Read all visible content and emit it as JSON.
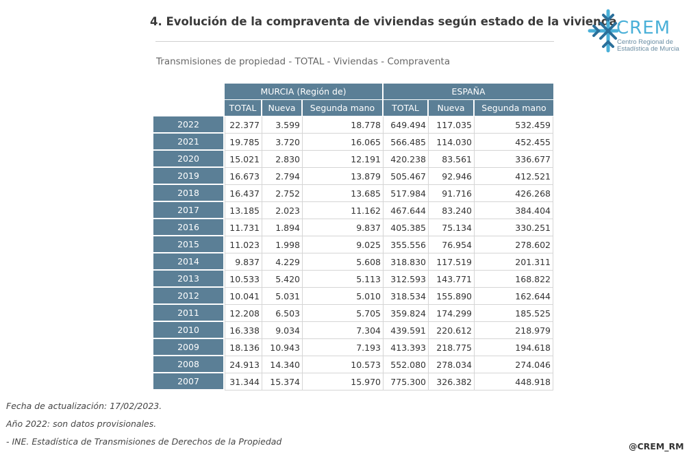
{
  "title": "4. Evolución de la compraventa de viviendas según estado de la vivienda.",
  "subtitle": "Transmisiones de propiedad - TOTAL - Viviendas - Compraventa",
  "logo": {
    "text": "CREM",
    "line1": "Centro Regional de",
    "line2": "Estadística de Murcia",
    "color": "#4ab0d8"
  },
  "table": {
    "groups": [
      "MURCIA (Región de)",
      "ESPAÑA"
    ],
    "columns": [
      "TOTAL",
      "Nueva",
      "Segunda mano",
      "TOTAL",
      "Nueva",
      "Segunda mano"
    ],
    "rows": [
      {
        "year": "2022",
        "values": [
          "22.377",
          "3.599",
          "18.778",
          "649.494",
          "117.035",
          "532.459"
        ]
      },
      {
        "year": "2021",
        "values": [
          "19.785",
          "3.720",
          "16.065",
          "566.485",
          "114.030",
          "452.455"
        ]
      },
      {
        "year": "2020",
        "values": [
          "15.021",
          "2.830",
          "12.191",
          "420.238",
          "83.561",
          "336.677"
        ]
      },
      {
        "year": "2019",
        "values": [
          "16.673",
          "2.794",
          "13.879",
          "505.467",
          "92.946",
          "412.521"
        ]
      },
      {
        "year": "2018",
        "values": [
          "16.437",
          "2.752",
          "13.685",
          "517.984",
          "91.716",
          "426.268"
        ]
      },
      {
        "year": "2017",
        "values": [
          "13.185",
          "2.023",
          "11.162",
          "467.644",
          "83.240",
          "384.404"
        ]
      },
      {
        "year": "2016",
        "values": [
          "11.731",
          "1.894",
          "9.837",
          "405.385",
          "75.134",
          "330.251"
        ]
      },
      {
        "year": "2015",
        "values": [
          "11.023",
          "1.998",
          "9.025",
          "355.556",
          "76.954",
          "278.602"
        ]
      },
      {
        "year": "2014",
        "values": [
          "9.837",
          "4.229",
          "5.608",
          "318.830",
          "117.519",
          "201.311"
        ]
      },
      {
        "year": "2013",
        "values": [
          "10.533",
          "5.420",
          "5.113",
          "312.593",
          "143.771",
          "168.822"
        ]
      },
      {
        "year": "2012",
        "values": [
          "10.041",
          "5.031",
          "5.010",
          "318.534",
          "155.890",
          "162.644"
        ]
      },
      {
        "year": "2011",
        "values": [
          "12.208",
          "6.503",
          "5.705",
          "359.824",
          "174.299",
          "185.525"
        ]
      },
      {
        "year": "2010",
        "values": [
          "16.338",
          "9.034",
          "7.304",
          "439.591",
          "220.612",
          "218.979"
        ]
      },
      {
        "year": "2009",
        "values": [
          "18.136",
          "10.943",
          "7.193",
          "413.393",
          "218.775",
          "194.618"
        ]
      },
      {
        "year": "2008",
        "values": [
          "24.913",
          "14.340",
          "10.573",
          "552.080",
          "278.034",
          "274.046"
        ]
      },
      {
        "year": "2007",
        "values": [
          "31.344",
          "15.374",
          "15.970",
          "775.300",
          "326.382",
          "448.918"
        ]
      }
    ]
  },
  "notes": [
    "Fecha de actualización: 17/02/2023.",
    "Año 2022: son datos provisionales.",
    "- INE. Estadística de Transmisiones de Derechos de la Propiedad"
  ],
  "handle": "@CREM_RM",
  "colors": {
    "header_bg": "#5b7f96",
    "grid": "#d5d5d5"
  }
}
